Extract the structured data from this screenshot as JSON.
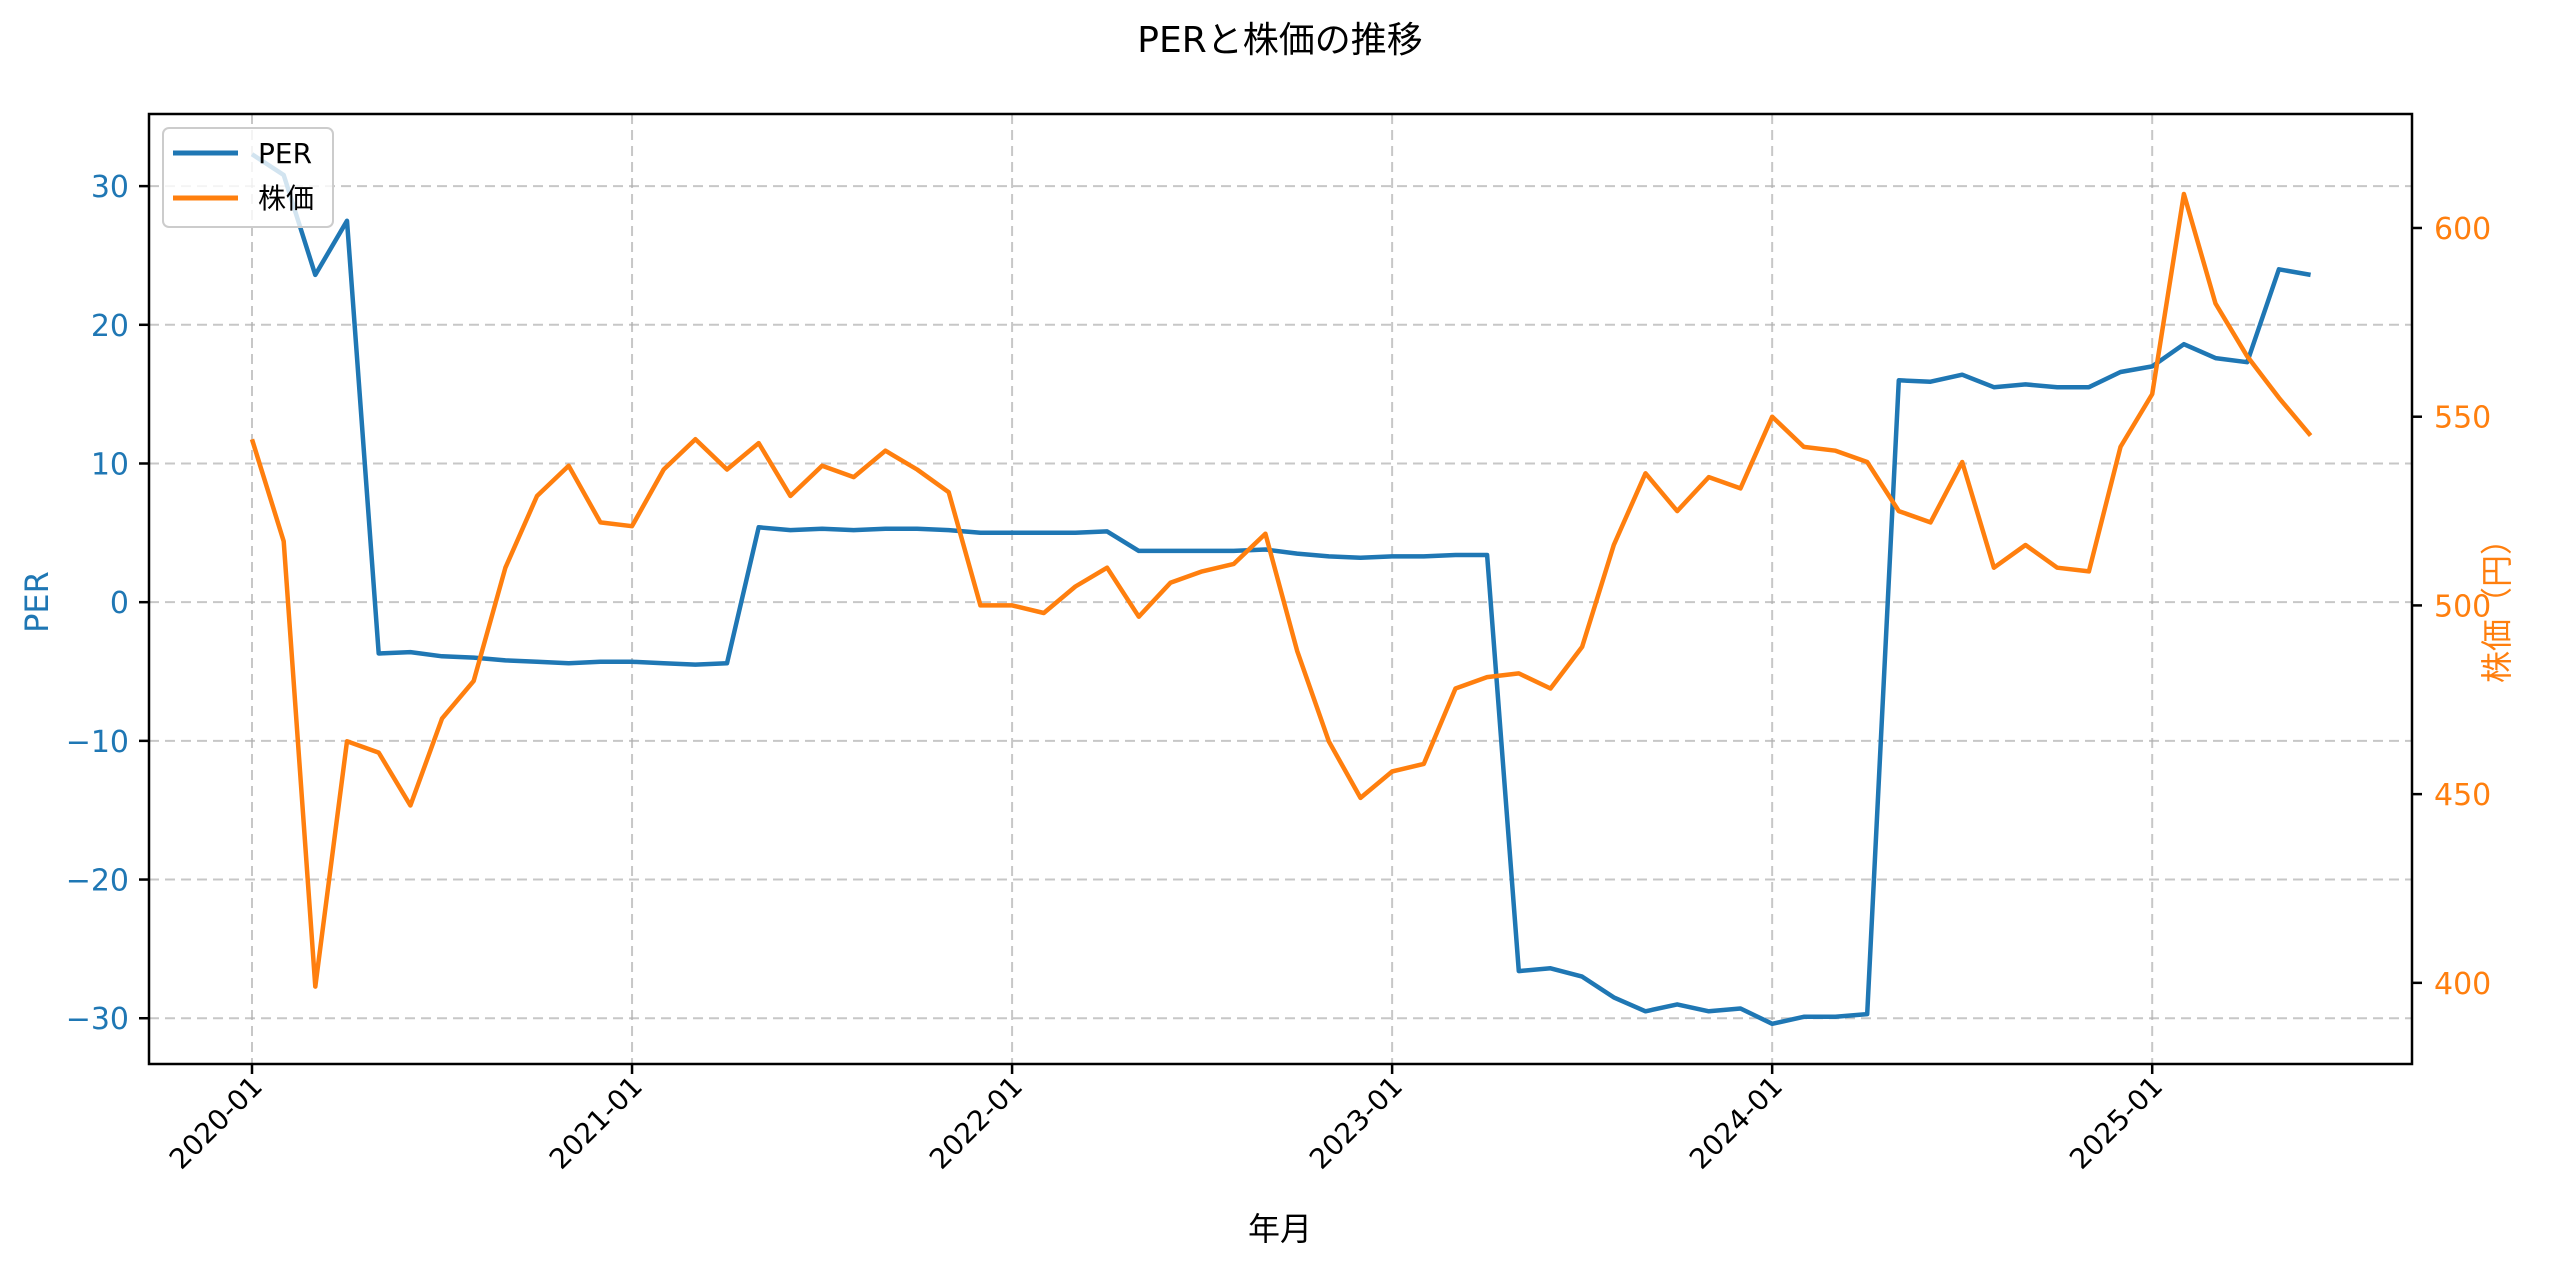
{
  "title": "PERと株価の推移",
  "colors": {
    "per": "#1f77b4",
    "price": "#ff7f0e",
    "grid": "#b0b0b0"
  },
  "legend": {
    "items": [
      {
        "label": "PER",
        "color": "#1f77b4"
      },
      {
        "label": "株価",
        "color": "#ff7f0e"
      }
    ]
  },
  "axes": {
    "x_label": "年月",
    "y_left_label": "PER",
    "y_right_label": "株価（円）",
    "x_ticks": [
      "2020-01",
      "2021-01",
      "2022-01",
      "2023-01",
      "2024-01",
      "2025-01"
    ],
    "y_left_ticks": [
      30,
      20,
      10,
      0,
      -10,
      -20,
      -30
    ],
    "y_right_ticks": [
      600,
      550,
      500,
      450,
      400
    ]
  },
  "chart_data": {
    "type": "line",
    "title": "PERと株価の推移",
    "xlabel": "年月",
    "ylabel": "PER",
    "ylabel_right": "株価（円）",
    "ylim": [
      -33.3,
      35.2
    ],
    "ylim_right": [
      378.5,
      630.2
    ],
    "grid": true,
    "legend_position": "upper left",
    "x_tick_labels": [
      "2020-01",
      "2021-01",
      "2022-01",
      "2023-01",
      "2024-01",
      "2025-01"
    ],
    "x": [
      "2020-01",
      "2020-02",
      "2020-03",
      "2020-04",
      "2020-05",
      "2020-06",
      "2020-07",
      "2020-08",
      "2020-09",
      "2020-10",
      "2020-11",
      "2020-12",
      "2021-01",
      "2021-02",
      "2021-03",
      "2021-04",
      "2021-05",
      "2021-06",
      "2021-07",
      "2021-08",
      "2021-09",
      "2021-10",
      "2021-11",
      "2021-12",
      "2022-01",
      "2022-02",
      "2022-03",
      "2022-04",
      "2022-05",
      "2022-06",
      "2022-07",
      "2022-08",
      "2022-09",
      "2022-10",
      "2022-11",
      "2022-12",
      "2023-01",
      "2023-02",
      "2023-03",
      "2023-04",
      "2023-05",
      "2023-06",
      "2023-07",
      "2023-08",
      "2023-09",
      "2023-10",
      "2023-11",
      "2023-12",
      "2024-01",
      "2024-02",
      "2024-03",
      "2024-04",
      "2024-05",
      "2024-06",
      "2024-07",
      "2024-08",
      "2024-09",
      "2024-10",
      "2024-11",
      "2024-12",
      "2025-01",
      "2025-02",
      "2025-03",
      "2025-04",
      "2025-05",
      "2025-06"
    ],
    "series": [
      {
        "name": "PER",
        "axis": "left",
        "color": "#1f77b4",
        "values": [
          32.3,
          30.8,
          23.6,
          27.5,
          -3.7,
          -3.6,
          -3.9,
          -4.0,
          -4.2,
          -4.3,
          -4.4,
          -4.3,
          -4.3,
          -4.4,
          -4.5,
          -4.4,
          5.4,
          5.2,
          5.3,
          5.2,
          5.3,
          5.3,
          5.2,
          5.0,
          5.0,
          5.0,
          5.0,
          5.1,
          3.7,
          3.7,
          3.7,
          3.7,
          3.8,
          3.5,
          3.3,
          3.2,
          3.3,
          3.3,
          3.4,
          3.4,
          -26.6,
          -26.4,
          -27.0,
          -28.5,
          -29.5,
          -29.0,
          -29.5,
          -29.3,
          -30.4,
          -29.9,
          -29.9,
          -29.7,
          16.0,
          15.9,
          16.4,
          15.5,
          15.7,
          15.5,
          15.5,
          16.6,
          17.0,
          18.6,
          17.6,
          17.3,
          24.0,
          23.6
        ]
      },
      {
        "name": "株価",
        "axis": "right",
        "color": "#ff7f0e",
        "values": [
          544,
          517,
          399,
          464,
          461,
          447,
          470,
          480,
          510,
          529,
          537,
          522,
          521,
          536,
          544,
          536,
          543,
          529,
          537,
          534,
          541,
          536,
          530,
          500,
          500,
          498,
          505,
          510,
          497,
          506,
          509,
          511,
          519,
          488,
          464,
          449,
          456,
          458,
          478,
          481,
          482,
          478,
          489,
          516,
          535,
          525,
          534,
          531,
          550,
          542,
          541,
          538,
          525,
          522,
          538,
          510,
          516,
          510,
          509,
          542,
          556,
          609,
          580,
          566,
          555,
          545
        ]
      }
    ]
  }
}
